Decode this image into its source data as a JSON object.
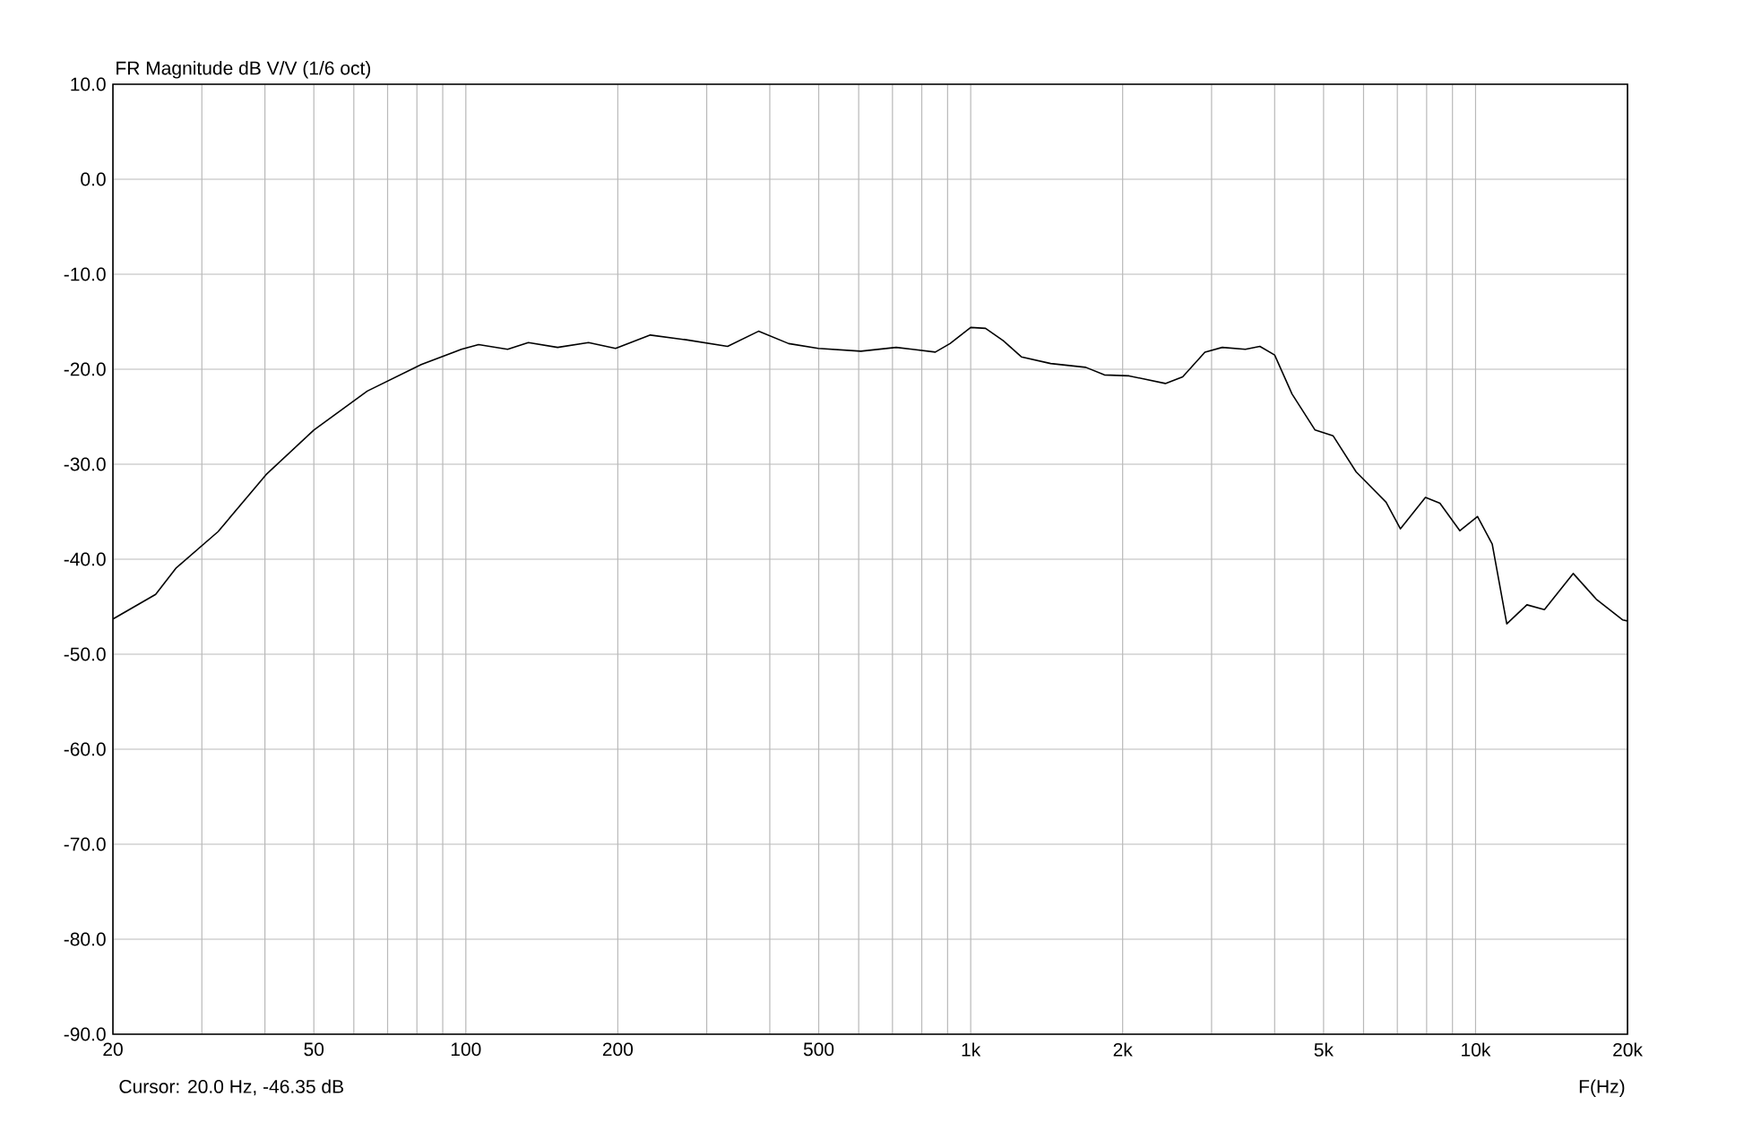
{
  "chart_data": {
    "type": "line",
    "title": "FR Magnitude dB V/V (1/6 oct)",
    "xlabel": "F(Hz)",
    "annotations": [
      "Cursor:   20.0 Hz, -46.35 dB"
    ],
    "log": "x",
    "grid": true,
    "marker": "none",
    "line_style": "solid",
    "xlim": [
      20,
      20000
    ],
    "ylim": [
      -90,
      10
    ],
    "xticks": [
      {
        "value": 20,
        "label": "20"
      },
      {
        "value": 30,
        "label": null
      },
      {
        "value": 40,
        "label": null
      },
      {
        "value": 50,
        "label": "50"
      },
      {
        "value": 60,
        "label": null
      },
      {
        "value": 70,
        "label": null
      },
      {
        "value": 80,
        "label": null
      },
      {
        "value": 90,
        "label": null
      },
      {
        "value": 100,
        "label": "100"
      },
      {
        "value": 200,
        "label": "200"
      },
      {
        "value": 300,
        "label": null
      },
      {
        "value": 400,
        "label": null
      },
      {
        "value": 500,
        "label": "500"
      },
      {
        "value": 600,
        "label": null
      },
      {
        "value": 700,
        "label": null
      },
      {
        "value": 800,
        "label": null
      },
      {
        "value": 900,
        "label": null
      },
      {
        "value": 1000,
        "label": "1k"
      },
      {
        "value": 2000,
        "label": "2k"
      },
      {
        "value": 3000,
        "label": null
      },
      {
        "value": 4000,
        "label": null
      },
      {
        "value": 5000,
        "label": "5k"
      },
      {
        "value": 6000,
        "label": null
      },
      {
        "value": 7000,
        "label": null
      },
      {
        "value": 8000,
        "label": null
      },
      {
        "value": 9000,
        "label": null
      },
      {
        "value": 10000,
        "label": "10k"
      },
      {
        "value": 20000,
        "label": "20k"
      }
    ],
    "yticks": [
      {
        "value": -90,
        "label": "-90.0"
      },
      {
        "value": -80,
        "label": "-80.0"
      },
      {
        "value": -70,
        "label": "-70.0"
      },
      {
        "value": -60,
        "label": "-60.0"
      },
      {
        "value": -50,
        "label": "-50.0"
      },
      {
        "value": -40,
        "label": "-40.0"
      },
      {
        "value": -30,
        "label": "-30.0"
      },
      {
        "value": -20,
        "label": "-20.0"
      },
      {
        "value": -10,
        "label": "-10.0"
      },
      {
        "value": 0,
        "label": "0.0"
      },
      {
        "value": 10,
        "label": "10.0"
      }
    ],
    "series": [
      {
        "color": "#000000",
        "x": [
          20,
          24.3,
          26.7,
          32.3,
          40.2,
          50,
          63.8,
          81.6,
          98,
          106,
          121,
          133,
          152,
          175,
          198,
          232,
          273,
          330,
          380,
          436,
          499,
          606,
          712,
          851,
          910,
          1000,
          1070,
          1160,
          1260,
          1440,
          1690,
          1840,
          2060,
          2430,
          2630,
          2910,
          3150,
          3500,
          3740,
          4000,
          4330,
          4810,
          5220,
          5800,
          6650,
          7100,
          7960,
          8500,
          9310,
          10090,
          10790,
          11530,
          12640,
          13690,
          15610,
          17340,
          19580,
          20000
        ],
        "values": [
          -46.3,
          -43.7,
          -40.9,
          -37.1,
          -31.1,
          -26.4,
          -22.3,
          -19.5,
          -17.9,
          -17.4,
          -17.9,
          -17.2,
          -17.7,
          -17.2,
          -17.8,
          -16.4,
          -16.9,
          -17.6,
          -16.0,
          -17.3,
          -17.8,
          -18.1,
          -17.7,
          -18.2,
          -17.3,
          -15.6,
          -15.7,
          -17.0,
          -18.7,
          -19.4,
          -19.8,
          -20.6,
          -20.7,
          -21.5,
          -20.8,
          -18.2,
          -17.7,
          -17.9,
          -17.6,
          -18.5,
          -22.6,
          -26.4,
          -27.0,
          -30.8,
          -34.0,
          -36.8,
          -33.5,
          -34.1,
          -37.0,
          -35.5,
          -38.4,
          -46.8,
          -44.8,
          -45.3,
          -41.5,
          -44.2,
          -46.4,
          -46.5
        ]
      }
    ]
  }
}
